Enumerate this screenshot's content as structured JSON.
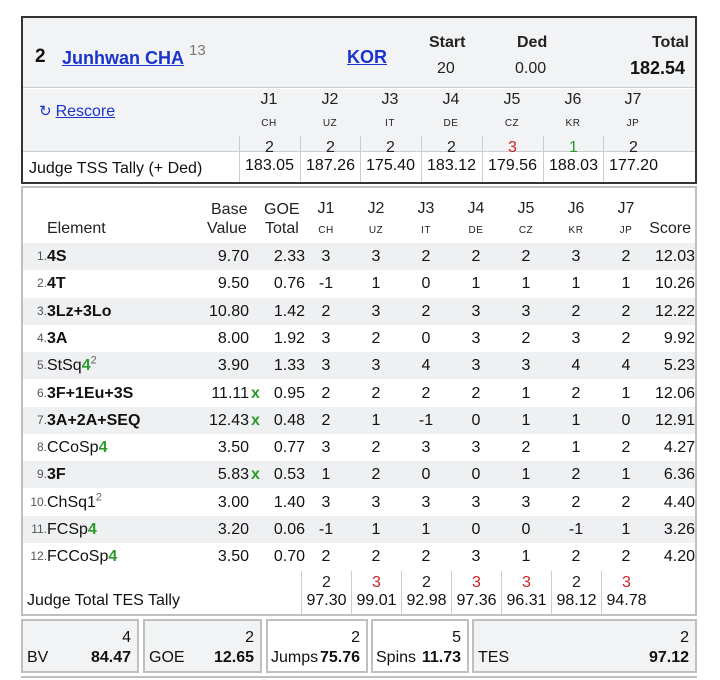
{
  "header": {
    "rank": "2",
    "skater_name": "Junhwan CHA",
    "skater_sup": "13",
    "nation": "KOR",
    "start_label": "Start",
    "start_value": "20",
    "ded_label": "Ded",
    "ded_value": "0.00",
    "total_label": "Total",
    "total_value": "182.54",
    "rescore_label": "Rescore",
    "judges": [
      {
        "label": "J1",
        "country": "CH",
        "rank": "2",
        "tss": "183.05",
        "rank_color": "#222222"
      },
      {
        "label": "J2",
        "country": "UZ",
        "rank": "2",
        "tss": "187.26",
        "rank_color": "#222222"
      },
      {
        "label": "J3",
        "country": "IT",
        "rank": "2",
        "tss": "175.40",
        "rank_color": "#222222"
      },
      {
        "label": "J4",
        "country": "DE",
        "rank": "2",
        "tss": "183.12",
        "rank_color": "#222222"
      },
      {
        "label": "J5",
        "country": "CZ",
        "rank": "3",
        "tss": "179.56",
        "rank_color": "#cc2222"
      },
      {
        "label": "J6",
        "country": "KR",
        "rank": "1",
        "tss": "188.03",
        "rank_color": "#2a9b2a"
      },
      {
        "label": "J7",
        "country": "JP",
        "rank": "2",
        "tss": "177.20",
        "rank_color": "#222222"
      }
    ],
    "tally_label": "Judge TSS Tally (+ Ded)"
  },
  "elements_table": {
    "headers": {
      "element": "Element",
      "base_top": "Base",
      "base_bottom": "Value",
      "goe_top": "GOE",
      "goe_bottom": "Total",
      "score": "Score"
    },
    "judge_headers": [
      {
        "label": "J1",
        "country": "CH"
      },
      {
        "label": "J2",
        "country": "UZ"
      },
      {
        "label": "J3",
        "country": "IT"
      },
      {
        "label": "J4",
        "country": "DE"
      },
      {
        "label": "J5",
        "country": "CZ"
      },
      {
        "label": "J6",
        "country": "KR"
      },
      {
        "label": "J7",
        "country": "JP"
      }
    ],
    "rows": [
      {
        "num": "1.",
        "name": "4S",
        "level": "",
        "sup": "",
        "bold": true,
        "bv": "9.70",
        "x": "",
        "goe": "2.33",
        "j": [
          "3",
          "3",
          "2",
          "2",
          "2",
          "3",
          "2"
        ],
        "score": "12.03"
      },
      {
        "num": "2.",
        "name": "4T",
        "level": "",
        "sup": "",
        "bold": true,
        "bv": "9.50",
        "x": "",
        "goe": "0.76",
        "j": [
          "-1",
          "1",
          "0",
          "1",
          "1",
          "1",
          "1"
        ],
        "score": "10.26"
      },
      {
        "num": "3.",
        "name": "3Lz+3Lo",
        "level": "",
        "sup": "",
        "bold": true,
        "bv": "10.80",
        "x": "",
        "goe": "1.42",
        "j": [
          "2",
          "3",
          "2",
          "3",
          "3",
          "2",
          "2"
        ],
        "score": "12.22"
      },
      {
        "num": "4.",
        "name": "3A",
        "level": "",
        "sup": "",
        "bold": true,
        "bv": "8.00",
        "x": "",
        "goe": "1.92",
        "j": [
          "3",
          "2",
          "0",
          "3",
          "2",
          "3",
          "2"
        ],
        "score": "9.92"
      },
      {
        "num": "5.",
        "name": "StSq",
        "level": "4",
        "sup": "2",
        "bold": false,
        "bv": "3.90",
        "x": "",
        "goe": "1.33",
        "j": [
          "3",
          "3",
          "4",
          "3",
          "3",
          "4",
          "4"
        ],
        "score": "5.23"
      },
      {
        "num": "6.",
        "name": "3F+1Eu+3S",
        "level": "",
        "sup": "",
        "bold": true,
        "bv": "11.11",
        "x": "x",
        "goe": "0.95",
        "j": [
          "2",
          "2",
          "2",
          "2",
          "1",
          "2",
          "1"
        ],
        "score": "12.06"
      },
      {
        "num": "7.",
        "name": "3A+2A+SEQ",
        "level": "",
        "sup": "",
        "bold": true,
        "bv": "12.43",
        "x": "x",
        "goe": "0.48",
        "j": [
          "2",
          "1",
          "-1",
          "0",
          "1",
          "1",
          "0"
        ],
        "score": "12.91"
      },
      {
        "num": "8.",
        "name": "CCoSp",
        "level": "4",
        "sup": "",
        "bold": false,
        "bv": "3.50",
        "x": "",
        "goe": "0.77",
        "j": [
          "3",
          "2",
          "3",
          "3",
          "2",
          "1",
          "2"
        ],
        "score": "4.27"
      },
      {
        "num": "9.",
        "name": "3F",
        "level": "",
        "sup": "",
        "bold": true,
        "bv": "5.83",
        "x": "x",
        "goe": "0.53",
        "j": [
          "1",
          "2",
          "0",
          "0",
          "1",
          "2",
          "1"
        ],
        "score": "6.36"
      },
      {
        "num": "10.",
        "name": "ChSq1",
        "level": "",
        "sup": "2",
        "bold": false,
        "bv": "3.00",
        "x": "",
        "goe": "1.40",
        "j": [
          "3",
          "3",
          "3",
          "3",
          "3",
          "2",
          "2"
        ],
        "score": "4.40"
      },
      {
        "num": "11.",
        "name": "FCSp",
        "level": "4",
        "sup": "",
        "bold": false,
        "bv": "3.20",
        "x": "",
        "goe": "0.06",
        "j": [
          "-1",
          "1",
          "1",
          "0",
          "0",
          "-1",
          "1"
        ],
        "score": "3.26"
      },
      {
        "num": "12.",
        "name": "FCCoSp",
        "level": "4",
        "sup": "",
        "bold": false,
        "bv": "3.50",
        "x": "",
        "goe": "0.70",
        "j": [
          "2",
          "2",
          "2",
          "3",
          "1",
          "2",
          "2"
        ],
        "score": "4.20"
      }
    ],
    "tes_tally_label": "Judge Total TES Tally",
    "tes_tally": [
      {
        "rank": "2",
        "value": "97.30",
        "rank_color": "#222222"
      },
      {
        "rank": "3",
        "value": "99.01",
        "rank_color": "#cc2222"
      },
      {
        "rank": "2",
        "value": "92.98",
        "rank_color": "#222222"
      },
      {
        "rank": "3",
        "value": "97.36",
        "rank_color": "#cc2222"
      },
      {
        "rank": "3",
        "value": "96.31",
        "rank_color": "#cc2222"
      },
      {
        "rank": "2",
        "value": "98.12",
        "rank_color": "#222222"
      },
      {
        "rank": "3",
        "value": "94.78",
        "rank_color": "#cc2222"
      }
    ]
  },
  "summary": {
    "bv": {
      "label": "BV",
      "rank": "4",
      "value": "84.47"
    },
    "goe": {
      "label": "GOE",
      "rank": "2",
      "value": "12.65"
    },
    "jumps": {
      "label": "Jumps",
      "rank": "2",
      "value": "75.76"
    },
    "spins": {
      "label": "Spins",
      "rank": "5",
      "value": "11.73"
    },
    "tes": {
      "label": "TES",
      "rank": "2",
      "value": "97.12"
    }
  },
  "colors": {
    "link": "#1a33cc",
    "level_green": "#2a9b2a",
    "rank_red": "#cc2222"
  }
}
